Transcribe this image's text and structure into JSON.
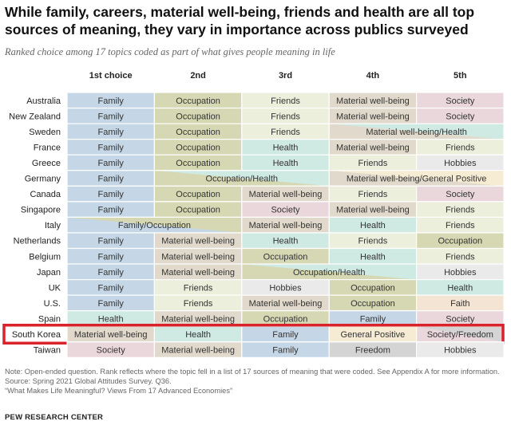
{
  "title": "While family, careers, material well-being, friends and health are all top sources of meaning, they vary in importance across publics surveyed",
  "subtitle": "Ranked choice among 17 topics coded as part of what gives people meaning in life",
  "notes": [
    "Note: Open-ended question. Rank reflects where the topic fell in a list of 17 sources of meaning that were coded. See Appendix A for more information.",
    "Source: Spring 2021 Global Attitudes Survey. Q36.",
    "“What Makes Life Meaningful? Views From 17 Advanced Economies”"
  ],
  "brand": "PEW RESEARCH CENTER",
  "colors": {
    "Family": "#c5d7e6",
    "Occupation": "#d5d8b2",
    "Friends": "#ecefdc",
    "Health": "#cfe9e3",
    "Material well-being": "#e1dacc",
    "Society": "#ead7dc",
    "Hobbies": "#eaeaea",
    "Faith": "#f4e4d3",
    "General Positive": "#f6ecd4",
    "Freedom": "#d4d4d4",
    "highlight": "#d9222a",
    "grid": "#ffffff"
  },
  "chart_data": {
    "type": "table",
    "columns": [
      "1st choice",
      "2nd",
      "3rd",
      "4th",
      "5th"
    ],
    "highlight_row": "South Korea",
    "rows": [
      {
        "country": "Australia",
        "cells": [
          {
            "label": "Family",
            "span": 1,
            "topics": [
              "Family"
            ]
          },
          {
            "label": "Occupation",
            "span": 1,
            "topics": [
              "Occupation"
            ]
          },
          {
            "label": "Friends",
            "span": 1,
            "topics": [
              "Friends"
            ]
          },
          {
            "label": "Material well-being",
            "span": 1,
            "topics": [
              "Material well-being"
            ]
          },
          {
            "label": "Society",
            "span": 1,
            "topics": [
              "Society"
            ]
          }
        ]
      },
      {
        "country": "New Zealand",
        "cells": [
          {
            "label": "Family",
            "span": 1,
            "topics": [
              "Family"
            ]
          },
          {
            "label": "Occupation",
            "span": 1,
            "topics": [
              "Occupation"
            ]
          },
          {
            "label": "Friends",
            "span": 1,
            "topics": [
              "Friends"
            ]
          },
          {
            "label": "Material well-being",
            "span": 1,
            "topics": [
              "Material well-being"
            ]
          },
          {
            "label": "Society",
            "span": 1,
            "topics": [
              "Society"
            ]
          }
        ]
      },
      {
        "country": "Sweden",
        "cells": [
          {
            "label": "Family",
            "span": 1,
            "topics": [
              "Family"
            ]
          },
          {
            "label": "Occupation",
            "span": 1,
            "topics": [
              "Occupation"
            ]
          },
          {
            "label": "Friends",
            "span": 1,
            "topics": [
              "Friends"
            ]
          },
          {
            "label": "Material well-being/Health",
            "span": 2,
            "topics": [
              "Material well-being",
              "Health"
            ]
          }
        ]
      },
      {
        "country": "France",
        "cells": [
          {
            "label": "Family",
            "span": 1,
            "topics": [
              "Family"
            ]
          },
          {
            "label": "Occupation",
            "span": 1,
            "topics": [
              "Occupation"
            ]
          },
          {
            "label": "Health",
            "span": 1,
            "topics": [
              "Health"
            ]
          },
          {
            "label": "Material well-being",
            "span": 1,
            "topics": [
              "Material well-being"
            ]
          },
          {
            "label": "Friends",
            "span": 1,
            "topics": [
              "Friends"
            ]
          }
        ]
      },
      {
        "country": "Greece",
        "cells": [
          {
            "label": "Family",
            "span": 1,
            "topics": [
              "Family"
            ]
          },
          {
            "label": "Occupation",
            "span": 1,
            "topics": [
              "Occupation"
            ]
          },
          {
            "label": "Health",
            "span": 1,
            "topics": [
              "Health"
            ]
          },
          {
            "label": "Friends",
            "span": 1,
            "topics": [
              "Friends"
            ]
          },
          {
            "label": "Hobbies",
            "span": 1,
            "topics": [
              "Hobbies"
            ]
          }
        ]
      },
      {
        "country": "Germany",
        "cells": [
          {
            "label": "Family",
            "span": 1,
            "topics": [
              "Family"
            ]
          },
          {
            "label": "Occupation/Health",
            "span": 2,
            "topics": [
              "Occupation",
              "Health"
            ]
          },
          {
            "label": "Material well-being/General Positive",
            "span": 2,
            "topics": [
              "Material well-being",
              "General Positive"
            ]
          }
        ]
      },
      {
        "country": "Canada",
        "cells": [
          {
            "label": "Family",
            "span": 1,
            "topics": [
              "Family"
            ]
          },
          {
            "label": "Occupation",
            "span": 1,
            "topics": [
              "Occupation"
            ]
          },
          {
            "label": "Material well-being",
            "span": 1,
            "topics": [
              "Material well-being"
            ]
          },
          {
            "label": "Friends",
            "span": 1,
            "topics": [
              "Friends"
            ]
          },
          {
            "label": "Society",
            "span": 1,
            "topics": [
              "Society"
            ]
          }
        ]
      },
      {
        "country": "Singapore",
        "cells": [
          {
            "label": "Family",
            "span": 1,
            "topics": [
              "Family"
            ]
          },
          {
            "label": "Occupation",
            "span": 1,
            "topics": [
              "Occupation"
            ]
          },
          {
            "label": "Society",
            "span": 1,
            "topics": [
              "Society"
            ]
          },
          {
            "label": "Material well-being",
            "span": 1,
            "topics": [
              "Material well-being"
            ]
          },
          {
            "label": "Friends",
            "span": 1,
            "topics": [
              "Friends"
            ]
          }
        ]
      },
      {
        "country": "Italy",
        "cells": [
          {
            "label": "Family/Occupation",
            "span": 2,
            "topics": [
              "Family",
              "Occupation"
            ]
          },
          {
            "label": "Material well-being",
            "span": 1,
            "topics": [
              "Material well-being"
            ]
          },
          {
            "label": "Health",
            "span": 1,
            "topics": [
              "Health"
            ]
          },
          {
            "label": "Friends",
            "span": 1,
            "topics": [
              "Friends"
            ]
          }
        ]
      },
      {
        "country": "Netherlands",
        "cells": [
          {
            "label": "Family",
            "span": 1,
            "topics": [
              "Family"
            ]
          },
          {
            "label": "Material well-being",
            "span": 1,
            "topics": [
              "Material well-being"
            ]
          },
          {
            "label": "Health",
            "span": 1,
            "topics": [
              "Health"
            ]
          },
          {
            "label": "Friends",
            "span": 1,
            "topics": [
              "Friends"
            ]
          },
          {
            "label": "Occupation",
            "span": 1,
            "topics": [
              "Occupation"
            ]
          }
        ]
      },
      {
        "country": "Belgium",
        "cells": [
          {
            "label": "Family",
            "span": 1,
            "topics": [
              "Family"
            ]
          },
          {
            "label": "Material well-being",
            "span": 1,
            "topics": [
              "Material well-being"
            ]
          },
          {
            "label": "Occupation",
            "span": 1,
            "topics": [
              "Occupation"
            ]
          },
          {
            "label": "Health",
            "span": 1,
            "topics": [
              "Health"
            ]
          },
          {
            "label": "Friends",
            "span": 1,
            "topics": [
              "Friends"
            ]
          }
        ]
      },
      {
        "country": "Japan",
        "cells": [
          {
            "label": "Family",
            "span": 1,
            "topics": [
              "Family"
            ]
          },
          {
            "label": "Material well-being",
            "span": 1,
            "topics": [
              "Material well-being"
            ]
          },
          {
            "label": "Occupation/Health",
            "span": 2,
            "topics": [
              "Occupation",
              "Health"
            ]
          },
          {
            "label": "Hobbies",
            "span": 1,
            "topics": [
              "Hobbies"
            ]
          }
        ]
      },
      {
        "country": "UK",
        "cells": [
          {
            "label": "Family",
            "span": 1,
            "topics": [
              "Family"
            ]
          },
          {
            "label": "Friends",
            "span": 1,
            "topics": [
              "Friends"
            ]
          },
          {
            "label": "Hobbies",
            "span": 1,
            "topics": [
              "Hobbies"
            ]
          },
          {
            "label": "Occupation",
            "span": 1,
            "topics": [
              "Occupation"
            ]
          },
          {
            "label": "Health",
            "span": 1,
            "topics": [
              "Health"
            ]
          }
        ]
      },
      {
        "country": "U.S.",
        "cells": [
          {
            "label": "Family",
            "span": 1,
            "topics": [
              "Family"
            ]
          },
          {
            "label": "Friends",
            "span": 1,
            "topics": [
              "Friends"
            ]
          },
          {
            "label": "Material well-being",
            "span": 1,
            "topics": [
              "Material well-being"
            ]
          },
          {
            "label": "Occupation",
            "span": 1,
            "topics": [
              "Occupation"
            ]
          },
          {
            "label": "Faith",
            "span": 1,
            "topics": [
              "Faith"
            ]
          }
        ]
      },
      {
        "country": "Spain",
        "cells": [
          {
            "label": "Health",
            "span": 1,
            "topics": [
              "Health"
            ]
          },
          {
            "label": "Material well-being",
            "span": 1,
            "topics": [
              "Material well-being"
            ]
          },
          {
            "label": "Occupation",
            "span": 1,
            "topics": [
              "Occupation"
            ]
          },
          {
            "label": "Family",
            "span": 1,
            "topics": [
              "Family"
            ]
          },
          {
            "label": "Society",
            "span": 1,
            "topics": [
              "Society"
            ]
          }
        ]
      },
      {
        "country": "South Korea",
        "cells": [
          {
            "label": "Material well-being",
            "span": 1,
            "topics": [
              "Material well-being"
            ]
          },
          {
            "label": "Health",
            "span": 1,
            "topics": [
              "Health"
            ]
          },
          {
            "label": "Family",
            "span": 1,
            "topics": [
              "Family"
            ]
          },
          {
            "label": "General Positive",
            "span": 1,
            "topics": [
              "General Positive"
            ]
          },
          {
            "label": "Society/Freedom",
            "span": 1,
            "topics": [
              "Society",
              "Freedom"
            ]
          }
        ]
      },
      {
        "country": "Taiwan",
        "cells": [
          {
            "label": "Society",
            "span": 1,
            "topics": [
              "Society"
            ]
          },
          {
            "label": "Material well-being",
            "span": 1,
            "topics": [
              "Material well-being"
            ]
          },
          {
            "label": "Family",
            "span": 1,
            "topics": [
              "Family"
            ]
          },
          {
            "label": "Freedom",
            "span": 1,
            "topics": [
              "Freedom"
            ]
          },
          {
            "label": "Hobbies",
            "span": 1,
            "topics": [
              "Hobbies"
            ]
          }
        ]
      }
    ]
  }
}
